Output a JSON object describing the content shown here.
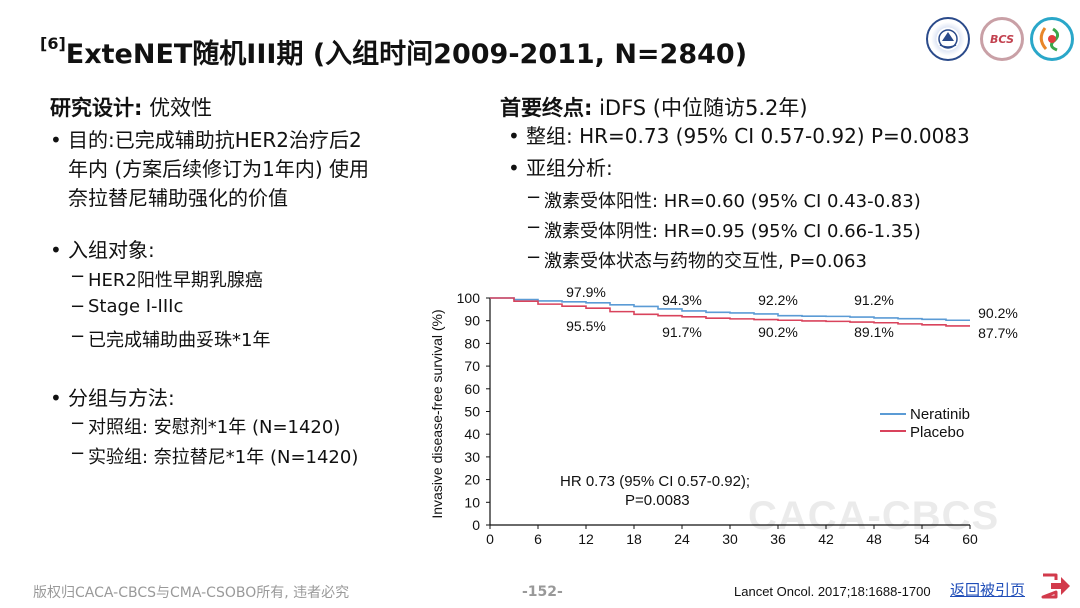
{
  "slide": {
    "title_ref": "[6]",
    "title": "ExteNET随机III期 (入组时间2009-2011, N=2840)",
    "left": {
      "design_label": "研究设计:",
      "design_value": " 优效性",
      "purpose_lines": [
        "目的:已完成辅助抗HER2治疗后2",
        "年内 (方案后续修订为1年内) 使用",
        "奈拉替尼辅助强化的价值"
      ],
      "population_label": "入组对象:",
      "population_items": [
        "HER2阳性早期乳腺癌",
        "Stage I-IIIc",
        "已完成辅助曲妥珠*1年"
      ],
      "grouping_label": "分组与方法:",
      "grouping_items": [
        "对照组: 安慰剂*1年 (N=1420)",
        "实验组: 奈拉替尼*1年 (N=1420)"
      ]
    },
    "right": {
      "endpoint_label": "首要终点:",
      "endpoint_value": " iDFS (中位随访5.2年)",
      "overall": "整组: HR=0.73 (95% CI 0.57-0.92) P=0.0083",
      "subgroup_label": "亚组分析:",
      "subgroup_items": [
        "激素受体阳性: HR=0.60 (95% CI 0.43-0.83)",
        "激素受体阴性: HR=0.95 (95% CI 0.66-1.35)",
        "激素受体状态与药物的交互性, P=0.063"
      ]
    },
    "watermark": "CACA-CBCS",
    "footer": {
      "copyright": "版权归CACA-CBCS与CMA-CSOBO所有, 违者必究",
      "page": "-152-",
      "reference": "Lancet Oncol. 2017;18:1688-1700",
      "back_link": "返回被引页"
    },
    "logos": {
      "logo1": "universiteit-seal",
      "logo2": "BCS",
      "logo3": "swirl-logo"
    }
  },
  "chart_data": {
    "type": "line",
    "ylabel": "Invasive disease-free survival (%)",
    "xlabel": "",
    "xlim": [
      0,
      60
    ],
    "ylim": [
      0,
      100
    ],
    "x_ticks": [
      0,
      6,
      12,
      18,
      24,
      30,
      36,
      42,
      48,
      54,
      60
    ],
    "y_ticks": [
      0,
      10,
      20,
      30,
      40,
      50,
      60,
      70,
      80,
      90,
      100
    ],
    "series": [
      {
        "name": "Neratinib",
        "color": "#5b9bd5",
        "x": [
          0,
          3,
          6,
          9,
          12,
          15,
          18,
          21,
          24,
          27,
          30,
          33,
          36,
          39,
          42,
          45,
          48,
          51,
          54,
          57,
          60
        ],
        "values": [
          100,
          99.3,
          98.7,
          98.3,
          97.9,
          97.0,
          96.3,
          95.2,
          94.3,
          93.7,
          93.4,
          93.0,
          92.2,
          92.0,
          91.9,
          91.6,
          91.2,
          90.9,
          90.6,
          90.2,
          90.2
        ]
      },
      {
        "name": "Placebo",
        "color": "#d9435c",
        "x": [
          0,
          3,
          6,
          9,
          12,
          15,
          18,
          21,
          24,
          27,
          30,
          33,
          36,
          39,
          42,
          45,
          48,
          51,
          54,
          57,
          60
        ],
        "values": [
          100,
          98.6,
          97.3,
          96.4,
          95.5,
          94.0,
          92.8,
          92.2,
          91.7,
          91.1,
          90.8,
          90.5,
          90.2,
          89.9,
          89.7,
          89.4,
          89.1,
          88.6,
          88.2,
          87.7,
          87.7
        ]
      }
    ],
    "annotations_top": [
      {
        "x": 12,
        "label": "97.9%"
      },
      {
        "x": 24,
        "label": "94.3%"
      },
      {
        "x": 36,
        "label": "92.2%"
      },
      {
        "x": 48,
        "label": "91.2%"
      },
      {
        "x": 60,
        "label": "90.2%"
      }
    ],
    "annotations_bottom": [
      {
        "x": 12,
        "label": "95.5%"
      },
      {
        "x": 24,
        "label": "91.7%"
      },
      {
        "x": 36,
        "label": "90.2%"
      },
      {
        "x": 48,
        "label": "89.1%"
      },
      {
        "x": 60,
        "label": "87.7%"
      }
    ],
    "hr_text_line1": "HR 0.73 (95% CI 0.57-0.92);",
    "hr_text_line2": "P=0.0083",
    "legend": "right"
  }
}
